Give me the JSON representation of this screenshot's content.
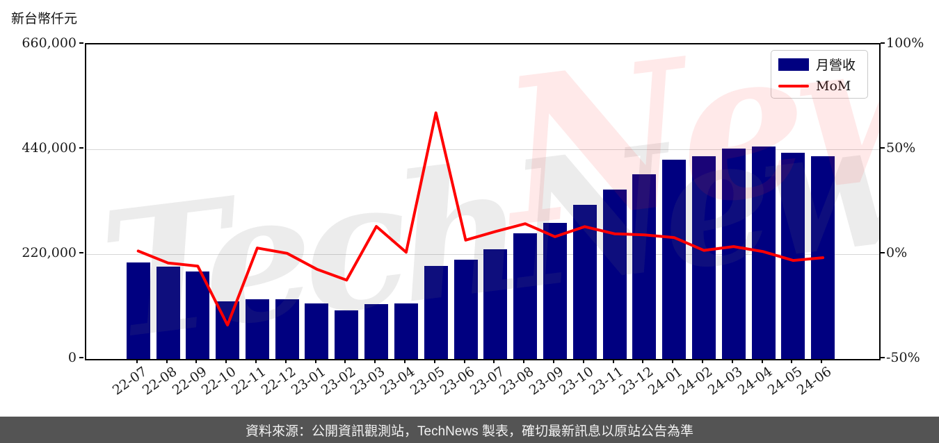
{
  "title": "新台幣仟元",
  "legend": {
    "bar_label": "月營收",
    "line_label": "MoM"
  },
  "watermark": {
    "gray_text": "TechNews",
    "pink_text": "News"
  },
  "footer": {
    "text": "資料來源：公開資訊觀測站，TechNews 製表，確切最新訊息以原站公告為準"
  },
  "colors": {
    "bar": "#000080",
    "line": "#ff0000",
    "grid": "#d6d6d6",
    "spine": "#000000",
    "footer_bg": "#545454",
    "footer_text": "#f2f2f2"
  },
  "chart_data": {
    "type": "bar",
    "title": "新台幣仟元",
    "categories": [
      "22-07",
      "22-08",
      "22-09",
      "22-10",
      "22-11",
      "22-12",
      "23-01",
      "23-02",
      "23-03",
      "23-04",
      "23-05",
      "23-06",
      "23-07",
      "23-08",
      "23-09",
      "23-10",
      "23-11",
      "23-12",
      "24-01",
      "24-02",
      "24-03",
      "24-04",
      "24-05",
      "24-06"
    ],
    "series": [
      {
        "name": "月營收",
        "type": "bar",
        "axis": "left",
        "unit": "新台幣仟元",
        "values": [
          203000,
          194500,
          183500,
          121500,
          125000,
          125500,
          116500,
          102000,
          115500,
          116500,
          195000,
          208000,
          230500,
          264000,
          286000,
          323500,
          355000,
          387500,
          418000,
          425500,
          441000,
          446500,
          433000,
          425500
        ]
      },
      {
        "name": "MoM",
        "type": "line",
        "axis": "right",
        "unit": "%",
        "values": [
          1.5,
          -4.2,
          -5.7,
          -33.8,
          2.9,
          0.4,
          -7.2,
          -12.4,
          13.2,
          0.9,
          67.4,
          6.7,
          10.8,
          14.5,
          8.3,
          13.1,
          9.7,
          9.2,
          7.9,
          1.8,
          3.6,
          1.2,
          -3.0,
          -1.7
        ]
      }
    ],
    "left_axis": {
      "label": "新台幣仟元",
      "range": [
        0,
        660000
      ],
      "tick_values": [
        0,
        220000,
        440000,
        660000
      ],
      "tick_labels": [
        "0",
        "220,000",
        "440,000",
        "660,000"
      ]
    },
    "right_axis": {
      "range": [
        -50,
        100
      ],
      "tick_values": [
        -50,
        0,
        50,
        100
      ],
      "tick_labels": [
        "-50%",
        "0%",
        "50%",
        "100%"
      ]
    },
    "grid": "horizontal",
    "legend_position": "top-right"
  }
}
